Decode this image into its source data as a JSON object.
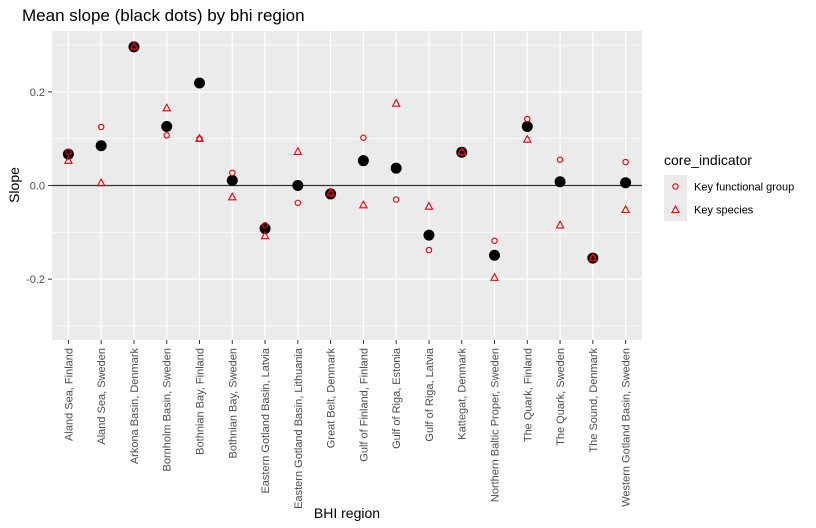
{
  "chart_data": {
    "type": "scatter",
    "title": "Mean slope (black dots) by bhi region",
    "xlabel": "BHI region",
    "ylabel": "Slope",
    "ylim": [
      -0.33,
      0.33
    ],
    "y_ticks": [
      -0.2,
      0.0,
      0.2
    ],
    "y_tick_labels": [
      "-0.2",
      "0.0",
      "0.2"
    ],
    "zero_line": true,
    "grid": true,
    "legend_position": "right",
    "legend_title": "core_indicator",
    "colors": {
      "indicator": "#e8000b",
      "mean": "#000000",
      "panel": "#ebebeb",
      "grid": "#ffffff"
    },
    "categories": [
      "Aland Sea, Finland",
      "Aland Sea, Sweden",
      "Arkona Basin, Denmark",
      "Bornholm Basin, Sweden",
      "Bothnian Bay, Finland",
      "Bothnian Bay, Sweden",
      "Eastern Gotland Basin, Latvia",
      "Eastern Gotland Basin, Lithuania",
      "Great Belt, Denmark",
      "Gulf of Finland, Finland",
      "Gulf of Riga, Estonia",
      "Gulf of Riga, Latvia",
      "Kattegat, Denmark",
      "Northern Baltic Proper, Sweden",
      "The Quark, Finland",
      "The Quark, Sweden",
      "The Sound, Denmark",
      "Western Gotland Basin, Sweden"
    ],
    "series": [
      {
        "name": "Key functional group",
        "shape": "circle",
        "values": [
          0.072,
          0.125,
          0.295,
          0.107,
          0.1,
          0.027,
          -0.085,
          -0.037,
          -0.018,
          0.102,
          -0.03,
          -0.138,
          0.07,
          -0.118,
          0.142,
          0.055,
          -0.155,
          0.05
        ]
      },
      {
        "name": "Key species",
        "shape": "triangle",
        "values": [
          0.053,
          0.005,
          0.297,
          0.165,
          0.1,
          -0.025,
          -0.108,
          0.072,
          -0.015,
          -0.042,
          0.175,
          -0.045,
          0.072,
          -0.197,
          0.098,
          -0.085,
          -0.155,
          -0.052
        ]
      },
      {
        "name": "",
        "shape": "dot",
        "role": "mean",
        "values": [
          0.067,
          0.085,
          0.296,
          0.126,
          0.219,
          0.011,
          -0.092,
          0.0,
          -0.018,
          0.053,
          0.037,
          -0.106,
          0.071,
          -0.149,
          0.126,
          0.008,
          -0.155,
          0.006
        ]
      }
    ]
  }
}
